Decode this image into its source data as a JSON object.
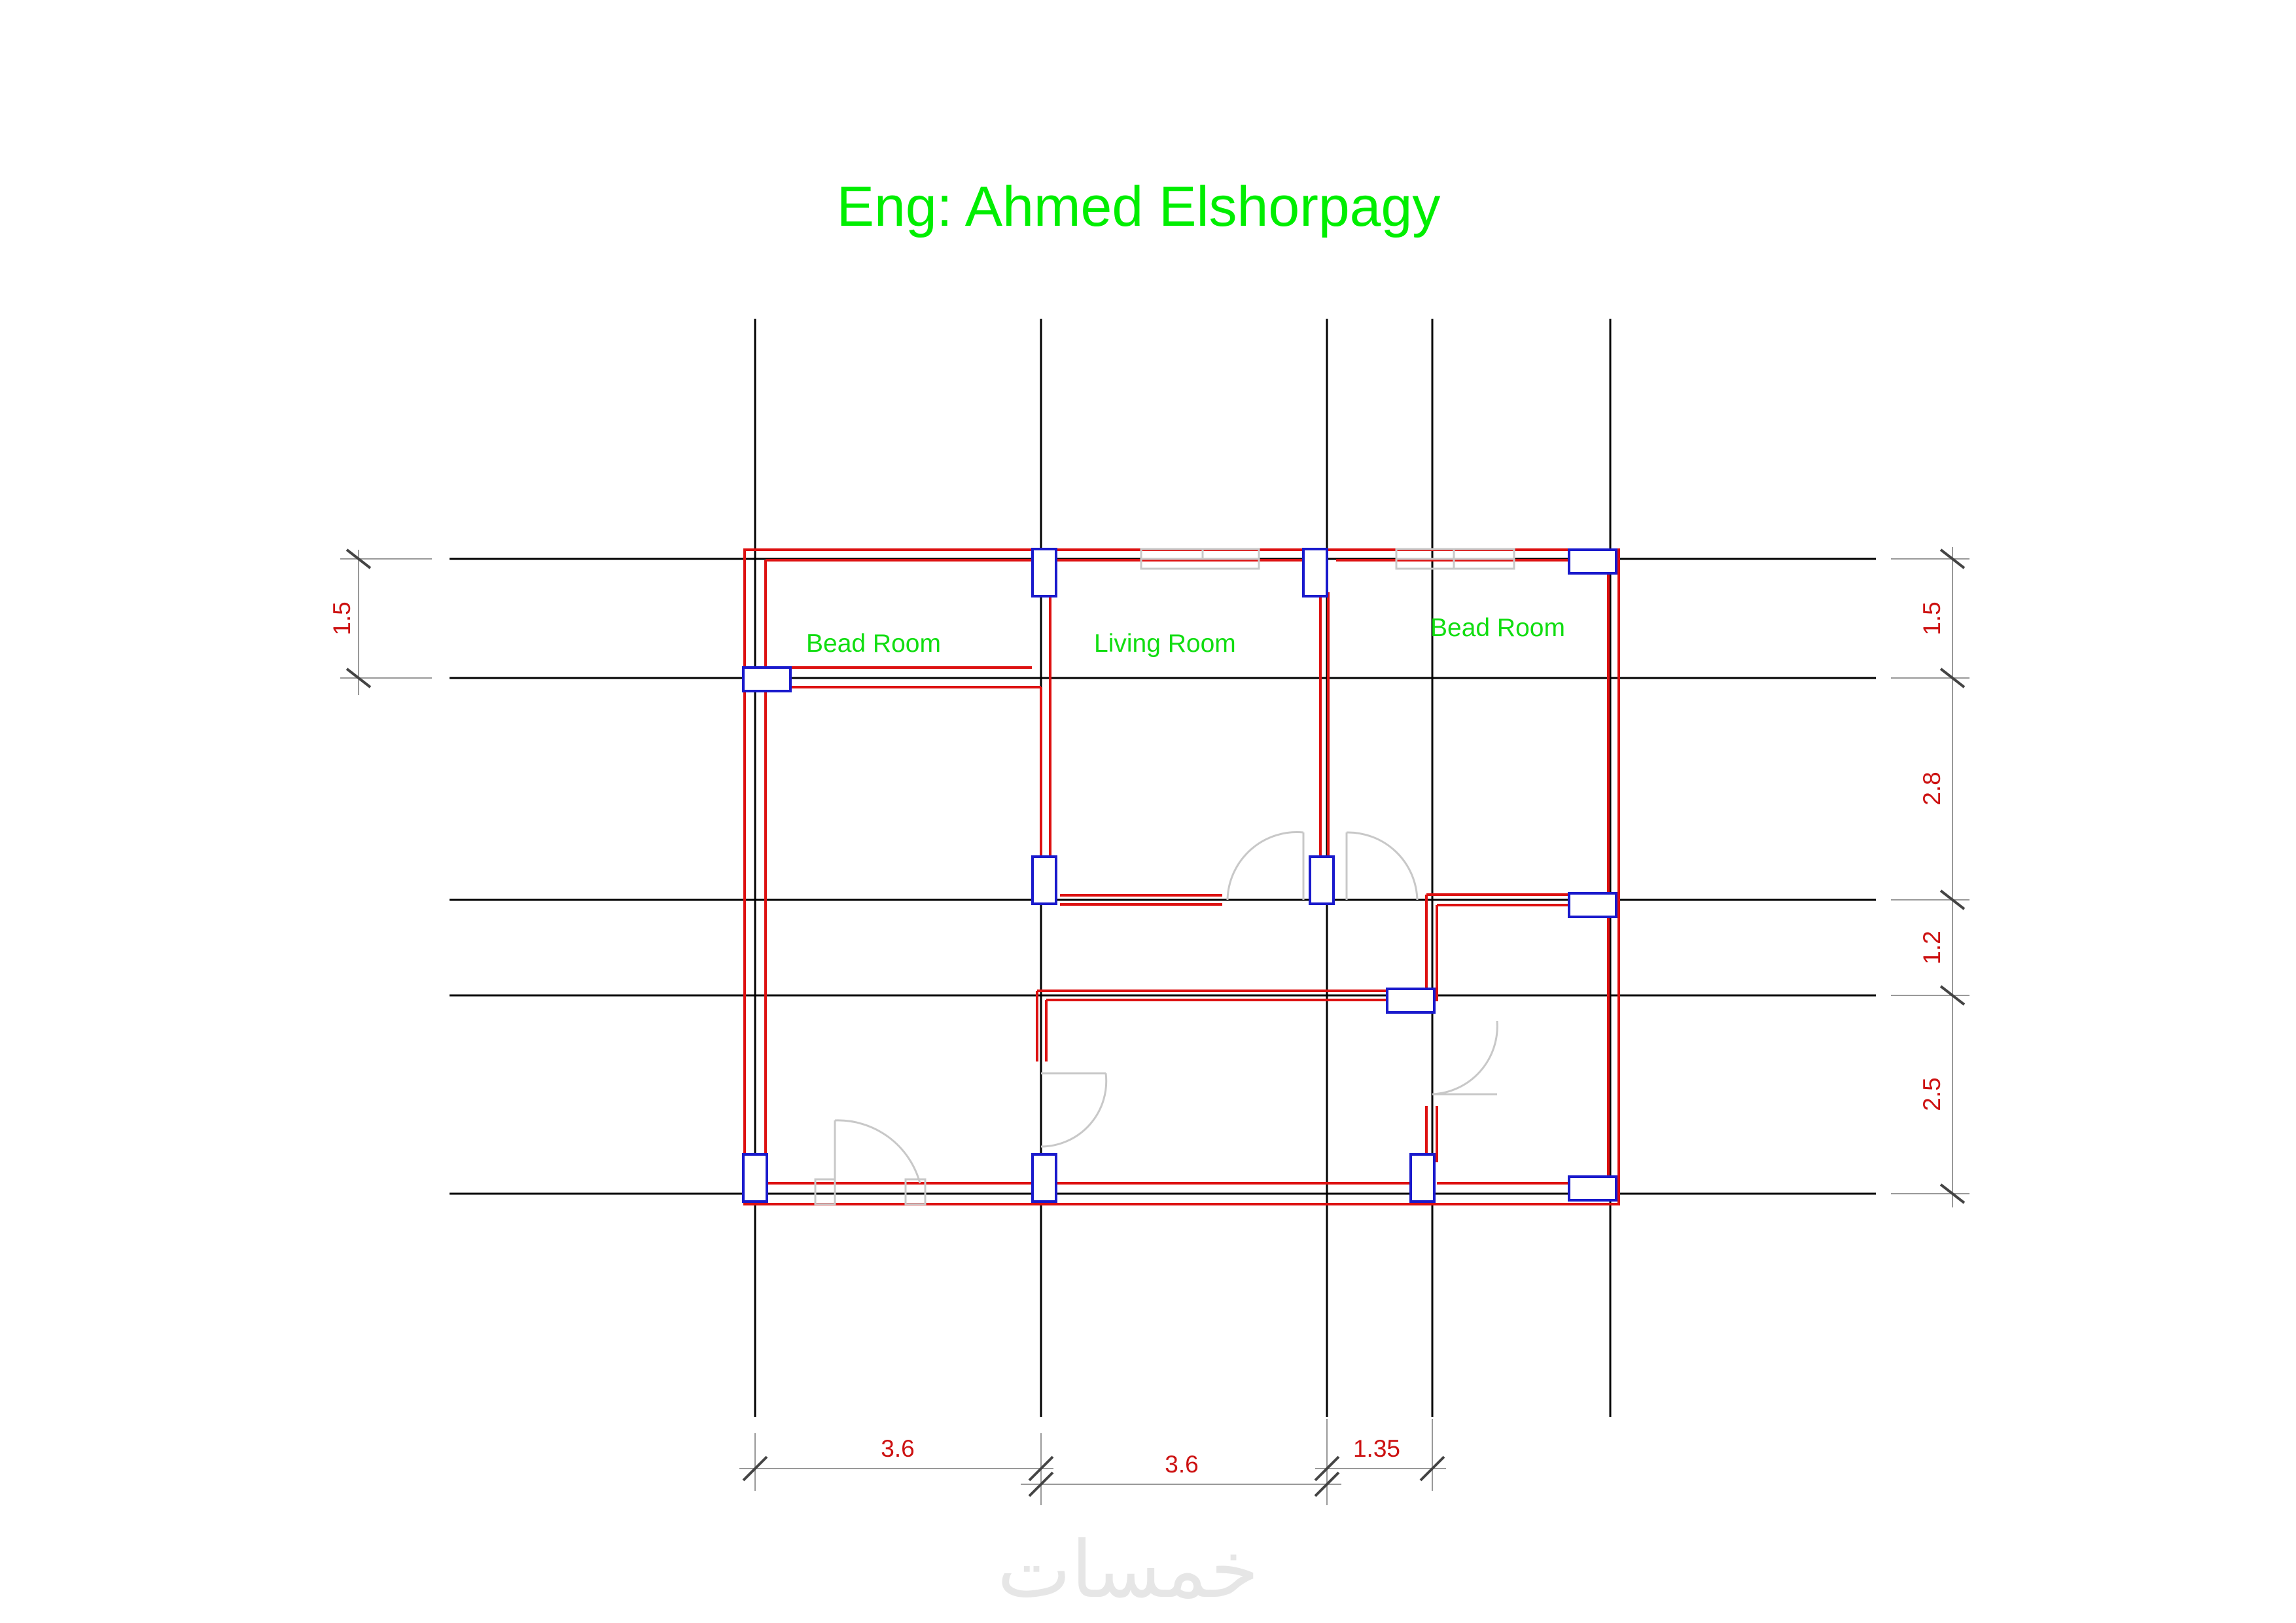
{
  "title": "Eng: Ahmed Elshorpagy",
  "rooms": {
    "bedroom_left": "Bead Room",
    "living_room": "Living Room",
    "bedroom_right": "Bead Room"
  },
  "dimensions": {
    "bottom": [
      "3.6",
      "3.6",
      "1.35"
    ],
    "left": [
      "1.5"
    ],
    "right": [
      "1.5",
      "2.8",
      "1.2",
      "2.5"
    ]
  },
  "watermark": "خمسات",
  "colors": {
    "title": "#00ee00",
    "room_labels": "#11dd11",
    "walls": "#dd1111",
    "columns": "#1a1acc",
    "grid": "#000000",
    "dimensions": "#cc1111",
    "dimension_lines": "#999999",
    "doors_windows": "#c8c8c8"
  }
}
